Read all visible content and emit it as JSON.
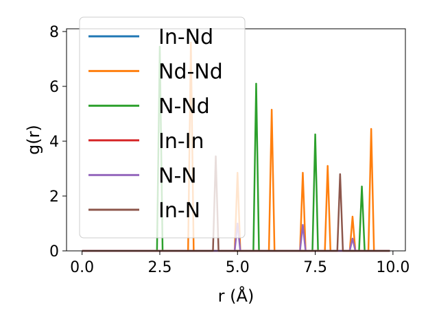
{
  "chart_data": {
    "type": "line",
    "xlabel": "r (Å)",
    "ylabel": "g(r)",
    "xlim": [
      -0.5,
      10.4
    ],
    "ylim": [
      0,
      8.1
    ],
    "xticks": [
      0.0,
      2.5,
      5.0,
      7.5,
      10.0
    ],
    "xtick_labels": [
      "0.0",
      "2.5",
      "5.0",
      "7.5",
      "10.0"
    ],
    "yticks": [
      0,
      2,
      4,
      6,
      8
    ],
    "ytick_labels": [
      "0",
      "2",
      "4",
      "6",
      "8"
    ],
    "grid": false,
    "legend_position": "top-left",
    "x_range": [
      0.0,
      9.9
    ],
    "series": [
      {
        "name": "In-Nd",
        "color": "#1f77b4",
        "peaks": []
      },
      {
        "name": "Nd-Nd",
        "color": "#ff7f0e",
        "peaks": [
          [
            3.5,
            7.6
          ],
          [
            5.0,
            2.85
          ],
          [
            6.1,
            5.15
          ],
          [
            7.1,
            2.85
          ],
          [
            7.9,
            3.1
          ],
          [
            8.7,
            1.25
          ],
          [
            9.3,
            4.45
          ]
        ]
      },
      {
        "name": "N-Nd",
        "color": "#2ca02c",
        "peaks": [
          [
            2.5,
            7.45
          ],
          [
            5.6,
            6.1
          ],
          [
            7.5,
            4.25
          ],
          [
            9.0,
            2.35
          ]
        ]
      },
      {
        "name": "In-In",
        "color": "#d62728",
        "peaks": []
      },
      {
        "name": "N-N",
        "color": "#9467bd",
        "peaks": [
          [
            5.0,
            1.0
          ],
          [
            7.1,
            0.95
          ],
          [
            8.7,
            0.45
          ]
        ]
      },
      {
        "name": "In-N",
        "color": "#8c564b",
        "peaks": [
          [
            4.3,
            3.45
          ],
          [
            8.3,
            2.8
          ]
        ]
      }
    ]
  }
}
